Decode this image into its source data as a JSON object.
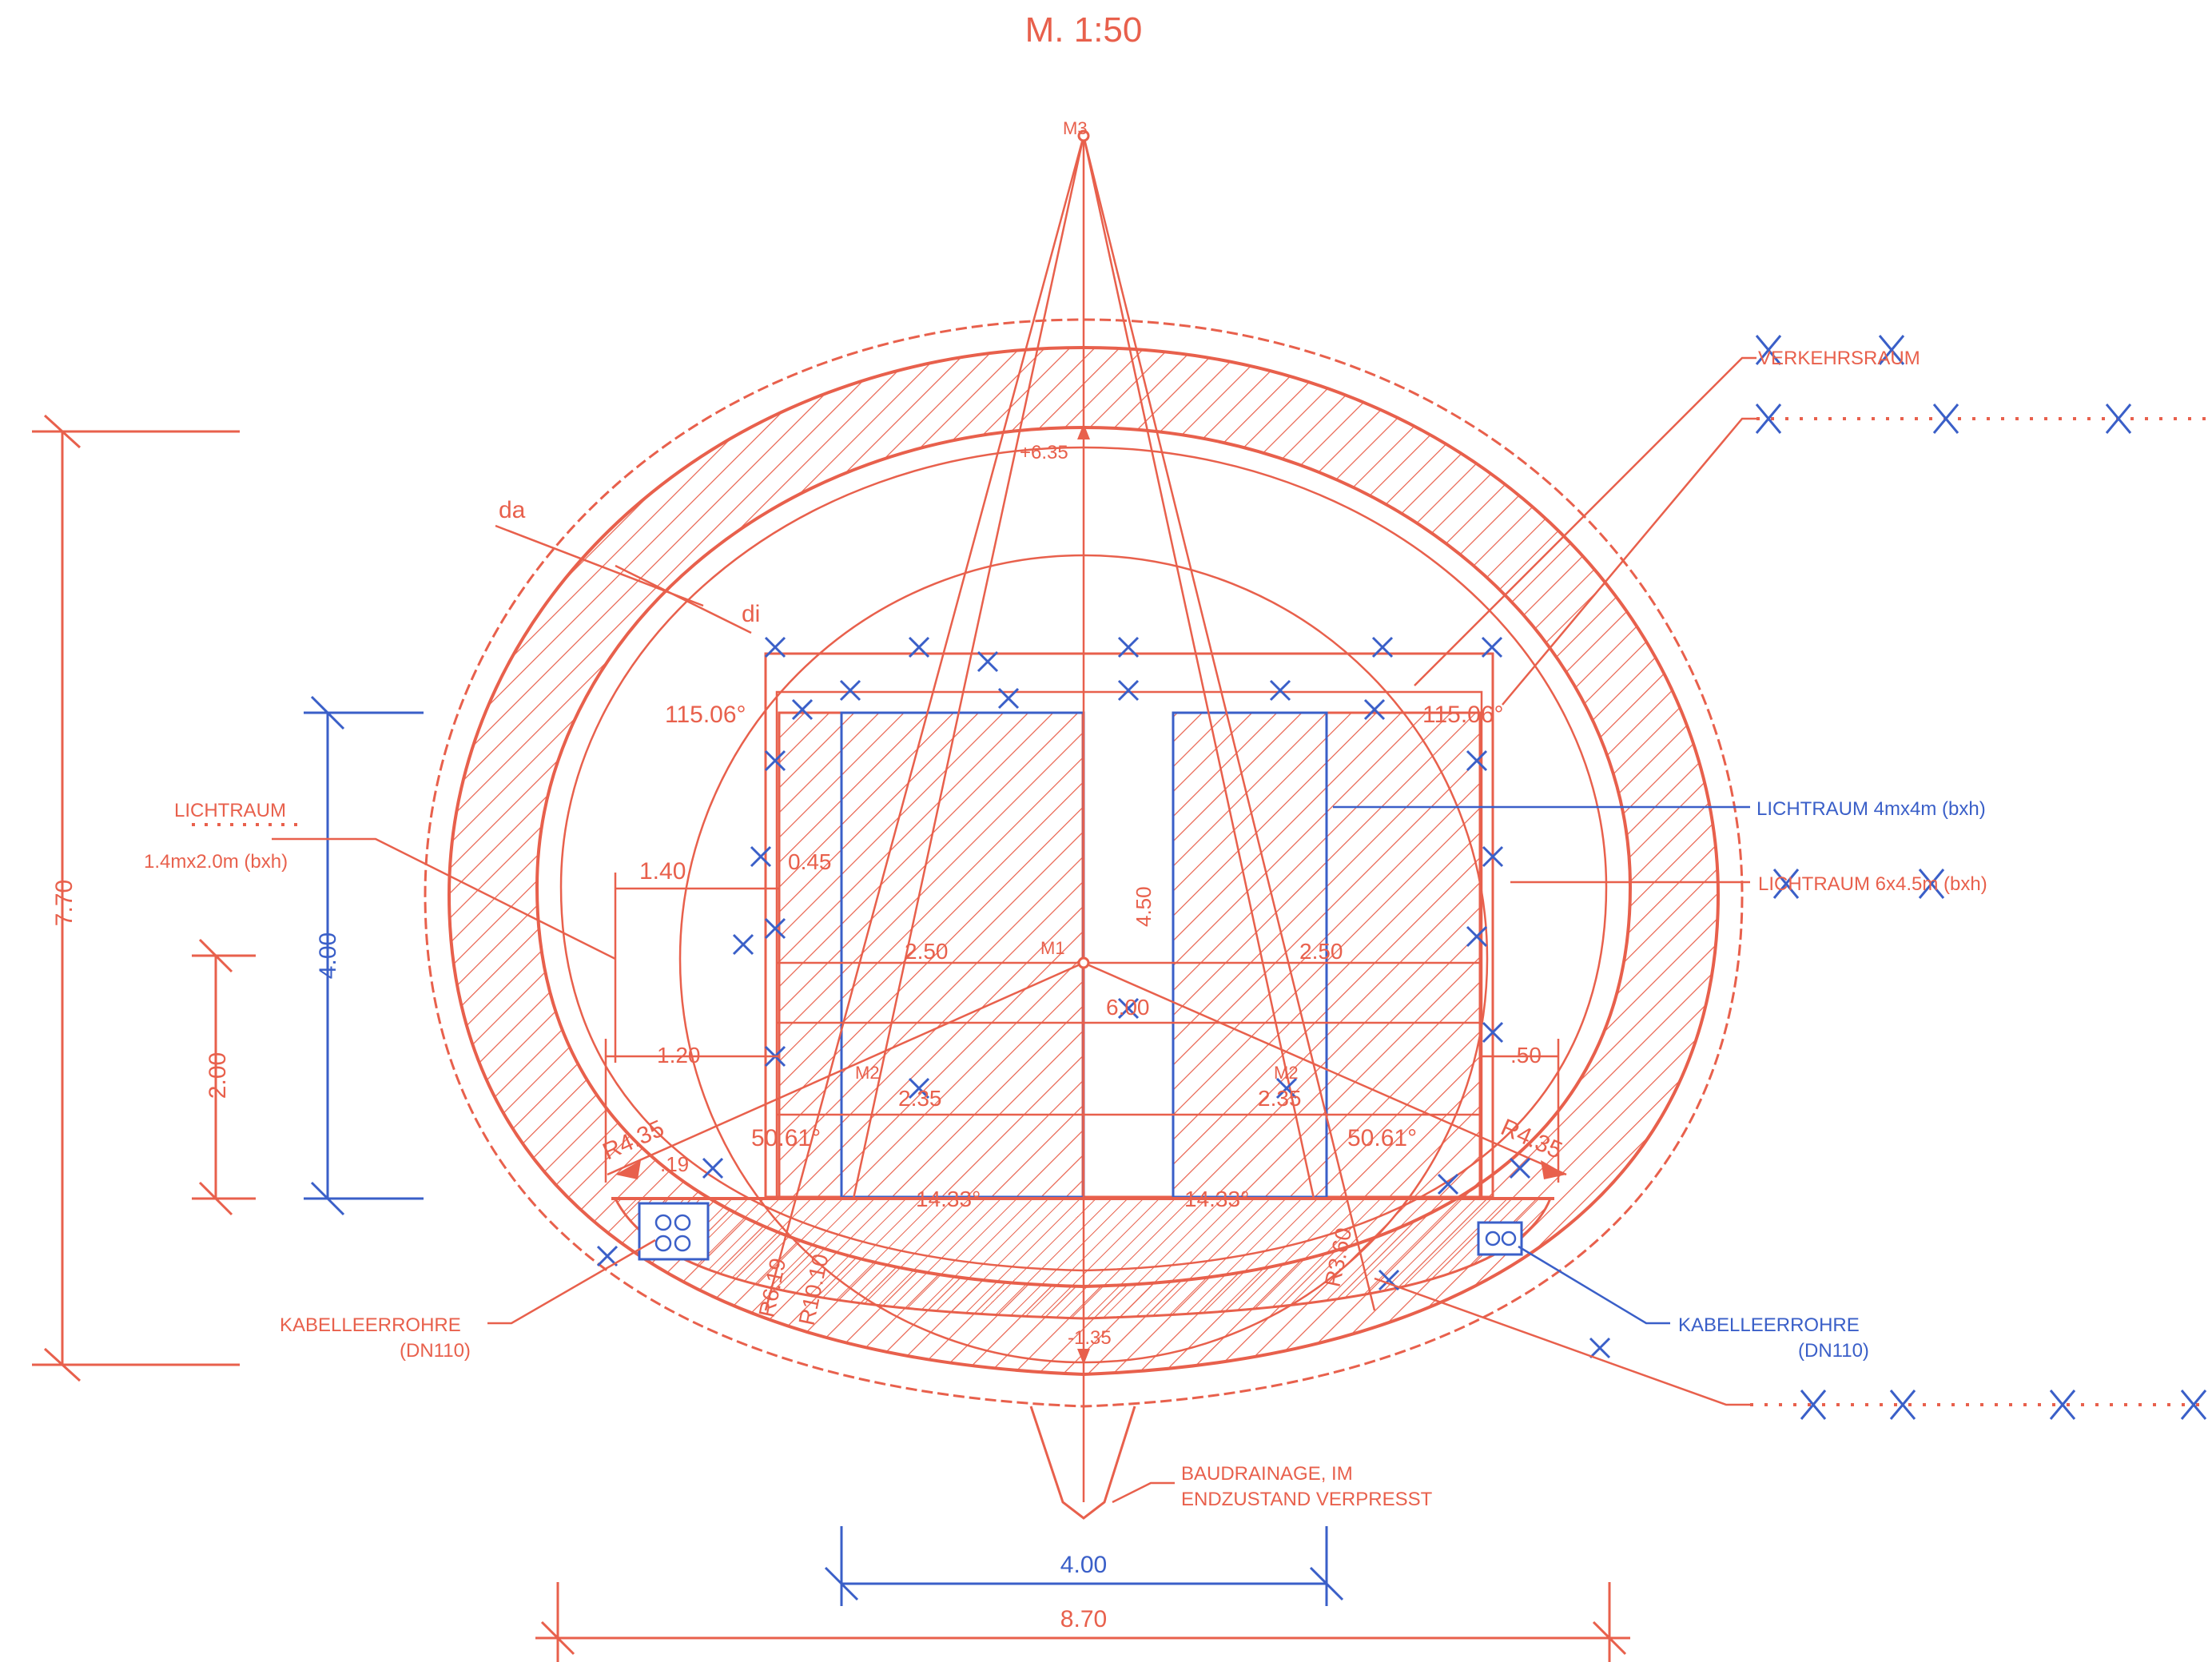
{
  "scale": "M. 1:50",
  "colors": {
    "red": "#e8604c",
    "blue": "#3a5fc8",
    "hatch": "#e8604c"
  },
  "points": {
    "m1": "M1",
    "m2_left": "M2",
    "m2_right": "M2",
    "m3": "M3"
  },
  "labels": {
    "da": "da",
    "di": "di",
    "crown_level": "+6.35",
    "invert_level": "-1.35",
    "lichtraum_left_title": "LICHTRAUM",
    "lichtraum_left_size": "1.4mx2.0m (bxh)",
    "lichtraum_4x4": "LICHTRAUM 4mx4m (bxh)",
    "lichtraum_6x4": "LICHTRAUM 6x4.5m (bxh)",
    "verkehrsraum": "VERKEHRSRAUM",
    "kabel_left": "KABELLEERROHRE",
    "kabel_left_dn": "(DN110)",
    "kabel_right": "KABELLEERROHRE",
    "kabel_right_dn": "(DN110)",
    "baudrainage_1": "BAUDRAINAGE, IM",
    "baudrainage_2": "ENDZUSTAND VERPRESST"
  },
  "dimensions": {
    "height_total": "7.70",
    "height_4": "4.00",
    "height_2": "2.00",
    "width_140": "1.40",
    "width_045": "0.45",
    "width_120": "1.20",
    "width_050": ".50",
    "width_250_left": "2.50",
    "width_250_right": "2.50",
    "width_600": "6.00",
    "height_450": "4.50",
    "width_400_bottom": "4.00",
    "width_870_bottom": "8.70",
    "radius_left": "R4.35",
    "radius_right": "R4.35",
    "r_left_1": "R6.19",
    "r_left_2": "R10.10",
    "r_right_1": "R3.60",
    "angle_left_top": "115.06°",
    "angle_right_top": "115.06°",
    "angle_left_bottom": "50.61°",
    "angle_right_bottom": "50.61°",
    "angle_left_floor": "14.33°",
    "angle_right_floor": "14.33°",
    "dim_235_left": "2.35",
    "dim_235_right": "2.35",
    "small_19": ".19"
  }
}
